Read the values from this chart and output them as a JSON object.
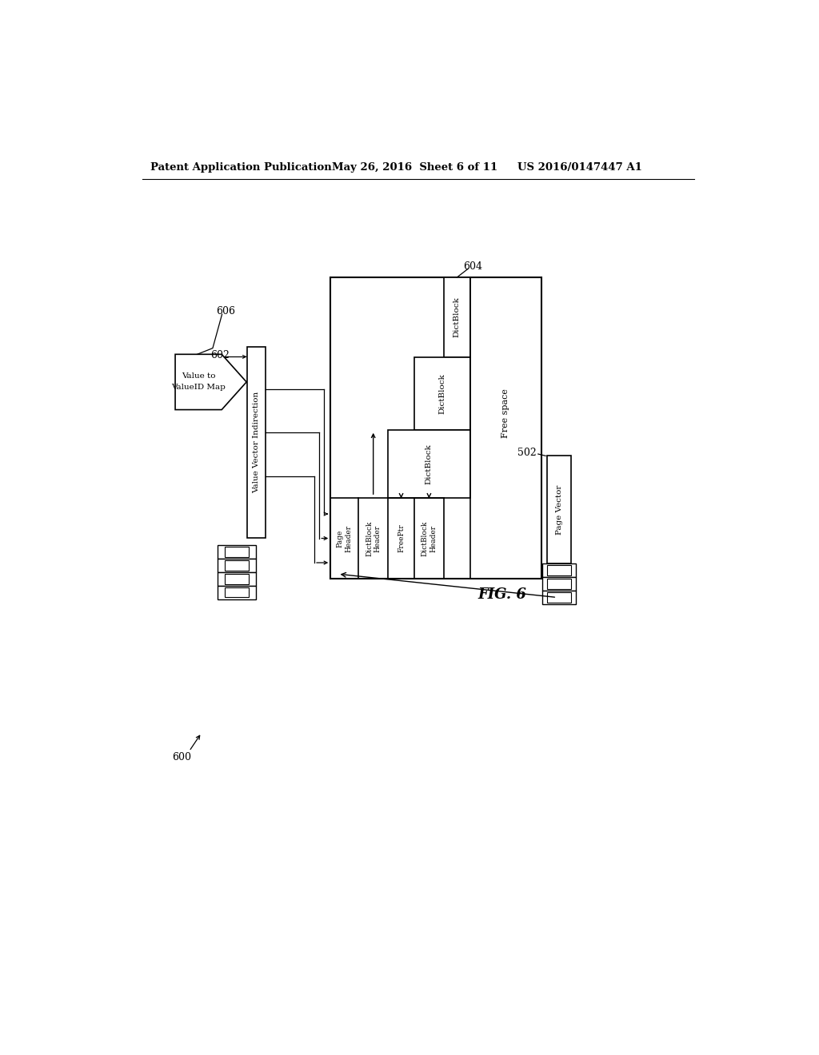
{
  "bg_color": "#ffffff",
  "text_color": "#000000",
  "header_left": "Patent Application Publication",
  "header_center": "May 26, 2016  Sheet 6 of 11",
  "header_right": "US 2016/0147447 A1",
  "fig_label": "FIG. 6",
  "lw": 1.2
}
